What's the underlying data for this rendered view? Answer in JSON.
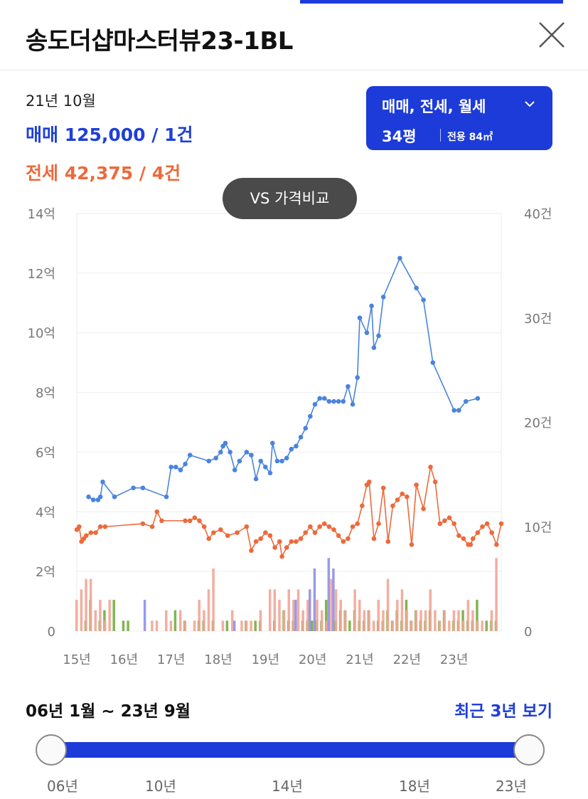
{
  "header": {
    "title": "송도더샵마스터뷰23-1BL",
    "close_icon": "close-icon"
  },
  "summary": {
    "period": "21년 10월",
    "sale": "매매 125,000 / 1건",
    "jeonse": "전세 42,375 / 4건"
  },
  "filter": {
    "types": "매매, 전세, 월세",
    "pyeong": "34평",
    "area": "전용 84㎡",
    "chevron_icon": "chevron-down-icon"
  },
  "vs_button": "VS 가격비교",
  "colors": {
    "accent": "#1d3bd8",
    "sale": "#4a84dc",
    "jeonse": "#ec6a3c",
    "sale_text": "#1f3fd6",
    "bar_sale": "#8f8fe8",
    "bar_jeonse": "#f2a596",
    "bar_monthly": "#73ad3f"
  },
  "chart_data": {
    "type": "line",
    "x_ticks": [
      "15년",
      "16년",
      "17년",
      "18년",
      "19년",
      "20년",
      "21년",
      "22년",
      "23년"
    ],
    "y_left_ticks": [
      "0",
      "2억",
      "4억",
      "6억",
      "8억",
      "10억",
      "12억",
      "14억"
    ],
    "y_right_ticks": [
      "0",
      "10건",
      "20건",
      "30건",
      "40건"
    ],
    "y_left_lim": [
      0,
      14
    ],
    "y_right_lim": [
      0,
      40
    ],
    "series": [
      {
        "key": "sale",
        "values": [
          [
            15.25,
            4.5
          ],
          [
            15.35,
            4.4
          ],
          [
            15.45,
            4.4
          ],
          [
            15.5,
            4.5
          ],
          [
            15.55,
            5.0
          ],
          [
            15.8,
            4.5
          ],
          [
            16.2,
            4.8
          ],
          [
            16.4,
            4.8
          ],
          [
            16.9,
            4.5
          ],
          [
            17.0,
            5.5
          ],
          [
            17.1,
            5.5
          ],
          [
            17.2,
            5.4
          ],
          [
            17.3,
            5.6
          ],
          [
            17.4,
            5.9
          ],
          [
            17.8,
            5.7
          ],
          [
            17.95,
            5.8
          ],
          [
            18.05,
            6.0
          ],
          [
            18.1,
            6.2
          ],
          [
            18.15,
            6.3
          ],
          [
            18.25,
            6.0
          ],
          [
            18.35,
            5.4
          ],
          [
            18.45,
            5.7
          ],
          [
            18.6,
            6.0
          ],
          [
            18.7,
            5.9
          ],
          [
            18.8,
            5.1
          ],
          [
            18.9,
            5.7
          ],
          [
            19.0,
            5.5
          ],
          [
            19.1,
            5.3
          ],
          [
            19.15,
            6.3
          ],
          [
            19.25,
            5.7
          ],
          [
            19.35,
            5.7
          ],
          [
            19.45,
            5.8
          ],
          [
            19.55,
            6.1
          ],
          [
            19.65,
            6.2
          ],
          [
            19.75,
            6.5
          ],
          [
            19.85,
            6.8
          ],
          [
            19.95,
            7.2
          ],
          [
            20.05,
            7.6
          ],
          [
            20.15,
            7.8
          ],
          [
            20.25,
            7.8
          ],
          [
            20.35,
            7.7
          ],
          [
            20.45,
            7.7
          ],
          [
            20.55,
            7.7
          ],
          [
            20.65,
            7.7
          ],
          [
            20.75,
            8.2
          ],
          [
            20.85,
            7.6
          ],
          [
            20.95,
            8.5
          ],
          [
            21.0,
            10.5
          ],
          [
            21.15,
            10.0
          ],
          [
            21.25,
            10.9
          ],
          [
            21.3,
            9.5
          ],
          [
            21.4,
            9.9
          ],
          [
            21.5,
            11.2
          ],
          [
            21.85,
            12.5
          ],
          [
            22.2,
            11.5
          ],
          [
            22.35,
            11.1
          ],
          [
            22.55,
            9.0
          ],
          [
            23.0,
            7.4
          ],
          [
            23.1,
            7.4
          ],
          [
            23.25,
            7.7
          ],
          [
            23.5,
            7.8
          ]
        ]
      },
      {
        "key": "jeonse",
        "values": [
          [
            15.0,
            3.4
          ],
          [
            15.05,
            3.5
          ],
          [
            15.1,
            3.0
          ],
          [
            15.15,
            3.1
          ],
          [
            15.2,
            3.2
          ],
          [
            15.3,
            3.3
          ],
          [
            15.4,
            3.3
          ],
          [
            15.5,
            3.5
          ],
          [
            15.6,
            3.5
          ],
          [
            16.4,
            3.6
          ],
          [
            16.6,
            3.5
          ],
          [
            16.7,
            4.0
          ],
          [
            16.8,
            3.7
          ],
          [
            17.3,
            3.7
          ],
          [
            17.4,
            3.7
          ],
          [
            17.5,
            3.8
          ],
          [
            17.6,
            3.7
          ],
          [
            17.7,
            3.5
          ],
          [
            17.8,
            3.1
          ],
          [
            17.9,
            3.3
          ],
          [
            18.05,
            3.4
          ],
          [
            18.2,
            3.2
          ],
          [
            18.4,
            3.3
          ],
          [
            18.6,
            3.5
          ],
          [
            18.7,
            2.7
          ],
          [
            18.8,
            3.0
          ],
          [
            18.9,
            3.1
          ],
          [
            19.0,
            3.3
          ],
          [
            19.1,
            3.2
          ],
          [
            19.2,
            2.8
          ],
          [
            19.3,
            3.0
          ],
          [
            19.35,
            2.5
          ],
          [
            19.45,
            2.8
          ],
          [
            19.55,
            3.0
          ],
          [
            19.65,
            3.0
          ],
          [
            19.75,
            3.1
          ],
          [
            19.85,
            3.3
          ],
          [
            19.95,
            3.5
          ],
          [
            20.05,
            3.3
          ],
          [
            20.15,
            3.5
          ],
          [
            20.25,
            3.6
          ],
          [
            20.35,
            3.5
          ],
          [
            20.45,
            3.4
          ],
          [
            20.55,
            3.2
          ],
          [
            20.65,
            3.0
          ],
          [
            20.75,
            3.1
          ],
          [
            20.85,
            3.5
          ],
          [
            20.95,
            3.6
          ],
          [
            21.05,
            4.2
          ],
          [
            21.15,
            4.9
          ],
          [
            21.2,
            5.0
          ],
          [
            21.3,
            3.1
          ],
          [
            21.4,
            3.6
          ],
          [
            21.5,
            4.8
          ],
          [
            21.6,
            3.0
          ],
          [
            21.7,
            4.2
          ],
          [
            21.8,
            4.4
          ],
          [
            21.9,
            4.6
          ],
          [
            22.0,
            4.5
          ],
          [
            22.1,
            2.9
          ],
          [
            22.2,
            4.9
          ],
          [
            22.35,
            4.1
          ],
          [
            22.5,
            5.5
          ],
          [
            22.6,
            5.0
          ],
          [
            22.7,
            3.6
          ],
          [
            22.8,
            3.7
          ],
          [
            22.9,
            3.8
          ],
          [
            23.0,
            3.6
          ],
          [
            23.1,
            3.2
          ],
          [
            23.2,
            3.1
          ],
          [
            23.3,
            2.9
          ],
          [
            23.35,
            2.9
          ],
          [
            23.4,
            3.1
          ],
          [
            23.5,
            3.3
          ],
          [
            23.6,
            3.5
          ],
          [
            23.7,
            3.6
          ],
          [
            23.8,
            3.3
          ],
          [
            23.9,
            2.9
          ],
          [
            24.0,
            3.6
          ]
        ]
      }
    ],
    "count_bars": [
      [
        15.0,
        3,
        0,
        0
      ],
      [
        15.1,
        4,
        0,
        1
      ],
      [
        15.2,
        5,
        0,
        3
      ],
      [
        15.3,
        5,
        0,
        0
      ],
      [
        15.4,
        2,
        0,
        1
      ],
      [
        15.5,
        3,
        0,
        2
      ],
      [
        15.6,
        1,
        0,
        0
      ],
      [
        15.7,
        3,
        0,
        3
      ],
      [
        15.9,
        0,
        0,
        1
      ],
      [
        16.0,
        0,
        0,
        1
      ],
      [
        16.4,
        0,
        3,
        0
      ],
      [
        16.6,
        1,
        0,
        0
      ],
      [
        16.7,
        1,
        0,
        0
      ],
      [
        16.9,
        2,
        0,
        0
      ],
      [
        17.0,
        1,
        0,
        2
      ],
      [
        17.2,
        2,
        0,
        1
      ],
      [
        17.3,
        1,
        0,
        0
      ],
      [
        17.5,
        1,
        0,
        1
      ],
      [
        17.6,
        3,
        0,
        1
      ],
      [
        17.7,
        2,
        0,
        0
      ],
      [
        17.8,
        4,
        0,
        1
      ],
      [
        17.9,
        6,
        0,
        0
      ],
      [
        18.1,
        1,
        0,
        1
      ],
      [
        18.3,
        2,
        1,
        0
      ],
      [
        18.5,
        1,
        0,
        1
      ],
      [
        18.6,
        1,
        0,
        0
      ],
      [
        18.7,
        1,
        0,
        1
      ],
      [
        18.8,
        0,
        0,
        1
      ],
      [
        18.9,
        2,
        0,
        0
      ],
      [
        19.1,
        4,
        0,
        1
      ],
      [
        19.2,
        4,
        0,
        0
      ],
      [
        19.3,
        3,
        0,
        2
      ],
      [
        19.4,
        2,
        0,
        1
      ],
      [
        19.5,
        4,
        0,
        1
      ],
      [
        19.6,
        3,
        3,
        0
      ],
      [
        19.7,
        4,
        0,
        1
      ],
      [
        19.8,
        2,
        0,
        1
      ],
      [
        19.9,
        3,
        4,
        1
      ],
      [
        20.0,
        0,
        6,
        1
      ],
      [
        20.1,
        3,
        0,
        1
      ],
      [
        20.2,
        2,
        0,
        3
      ],
      [
        20.3,
        1,
        7,
        0
      ],
      [
        20.4,
        5,
        6,
        1
      ],
      [
        20.5,
        4,
        0,
        2
      ],
      [
        20.6,
        3,
        0,
        2
      ],
      [
        20.7,
        2,
        0,
        1
      ],
      [
        20.8,
        0,
        0,
        2
      ],
      [
        20.9,
        4,
        0,
        1
      ],
      [
        21.0,
        3,
        0,
        1
      ],
      [
        21.1,
        2,
        0,
        2
      ],
      [
        21.2,
        2,
        0,
        0
      ],
      [
        21.3,
        1,
        0,
        1
      ],
      [
        21.4,
        3,
        0,
        1
      ],
      [
        21.5,
        2,
        0,
        2
      ],
      [
        21.6,
        5,
        0,
        1
      ],
      [
        21.7,
        1,
        0,
        2
      ],
      [
        21.8,
        3,
        0,
        1
      ],
      [
        21.9,
        4,
        0,
        3
      ],
      [
        22.0,
        2,
        0,
        1
      ],
      [
        22.1,
        1,
        0,
        2
      ],
      [
        22.2,
        2,
        0,
        1
      ],
      [
        22.3,
        2,
        0,
        1
      ],
      [
        22.4,
        2,
        0,
        2
      ],
      [
        22.5,
        4,
        0,
        0
      ],
      [
        22.6,
        2,
        0,
        1
      ],
      [
        22.7,
        1,
        0,
        2
      ],
      [
        22.8,
        2,
        0,
        0
      ],
      [
        22.9,
        1,
        0,
        1
      ],
      [
        23.0,
        2,
        0,
        1
      ],
      [
        23.1,
        2,
        0,
        2
      ],
      [
        23.2,
        1,
        0,
        1
      ],
      [
        23.3,
        3,
        0,
        1
      ],
      [
        23.4,
        2,
        0,
        3
      ],
      [
        23.5,
        1,
        0,
        0
      ],
      [
        23.6,
        1,
        0,
        1
      ],
      [
        23.7,
        0,
        0,
        1
      ],
      [
        23.8,
        2,
        0,
        1
      ],
      [
        23.9,
        7,
        0,
        0
      ]
    ]
  },
  "range": {
    "label": "06년 1월 ~ 23년 9월",
    "recent_link": "최근 3년 보기",
    "ticks": [
      "06년",
      "10년",
      "14년",
      "18년",
      "23년"
    ]
  }
}
